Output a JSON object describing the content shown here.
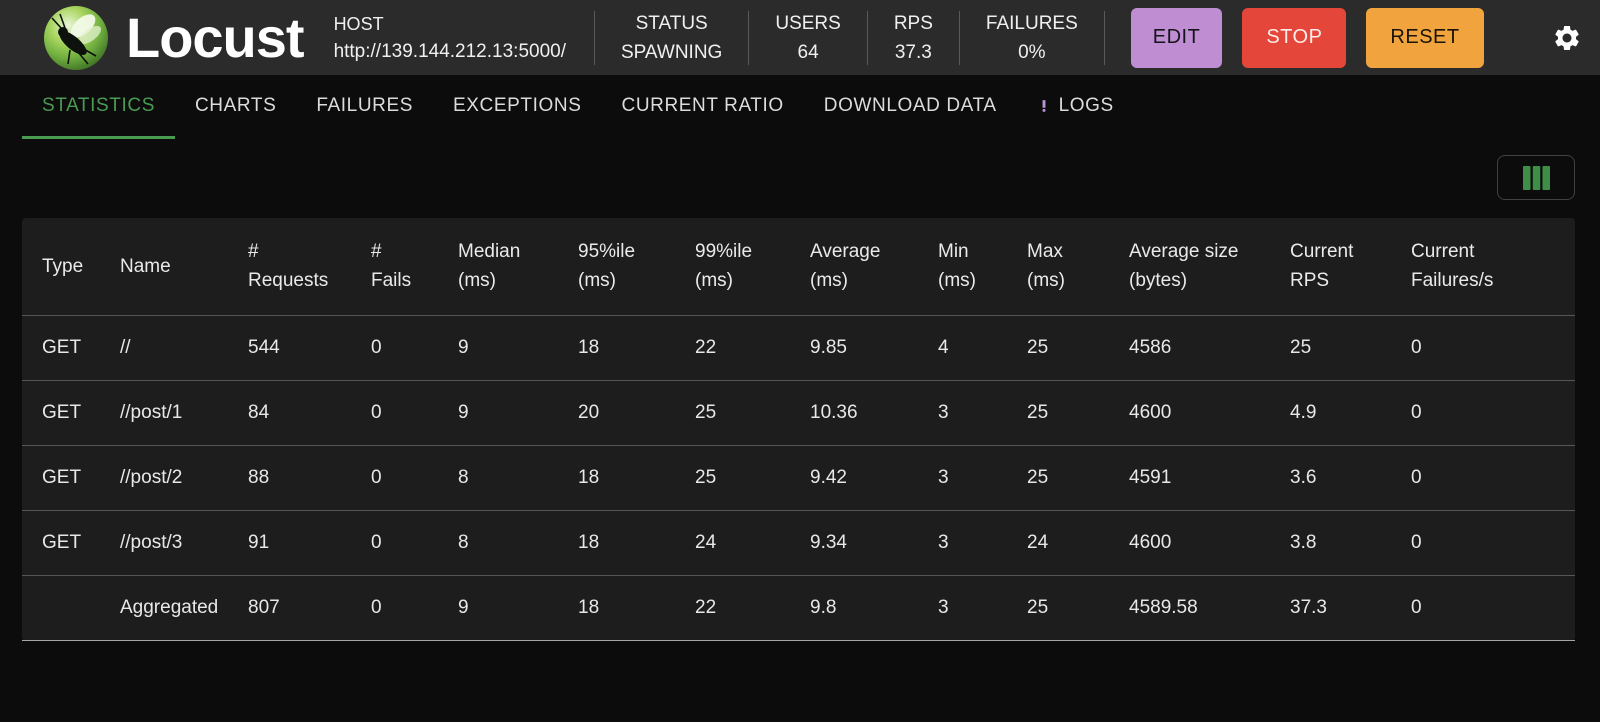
{
  "header": {
    "app_name": "Locust",
    "host": {
      "label": "HOST",
      "url": "http://139.144.212.13:5000/"
    },
    "stats": [
      {
        "label": "STATUS",
        "value": "SPAWNING"
      },
      {
        "label": "USERS",
        "value": "64"
      },
      {
        "label": "RPS",
        "value": "37.3"
      },
      {
        "label": "FAILURES",
        "value": "0%"
      }
    ],
    "buttons": {
      "edit": "EDIT",
      "stop": "STOP",
      "reset": "RESET"
    },
    "icons": {
      "topbar_right": "gear-icon",
      "logo": "locust-logo"
    }
  },
  "tabs": [
    {
      "label": "STATISTICS",
      "active": true
    },
    {
      "label": "CHARTS"
    },
    {
      "label": "FAILURES"
    },
    {
      "label": "EXCEPTIONS"
    },
    {
      "label": "CURRENT RATIO"
    },
    {
      "label": "DOWNLOAD DATA"
    },
    {
      "label": "LOGS",
      "alert_icon": "exclamation-icon"
    }
  ],
  "toolbar": {
    "icon": "view-columns-icon"
  },
  "table": {
    "columns": [
      {
        "key": "type",
        "lines": [
          "Type"
        ]
      },
      {
        "key": "name",
        "lines": [
          "Name"
        ]
      },
      {
        "key": "requests",
        "lines": [
          "#",
          "Requests"
        ]
      },
      {
        "key": "fails",
        "lines": [
          "#",
          "Fails"
        ]
      },
      {
        "key": "median-ms",
        "lines": [
          "Median",
          "(ms)"
        ]
      },
      {
        "key": "p95-ms",
        "lines": [
          "95%ile",
          "(ms)"
        ]
      },
      {
        "key": "p99-ms",
        "lines": [
          "99%ile",
          "(ms)"
        ]
      },
      {
        "key": "average-ms",
        "lines": [
          "Average",
          "(ms)"
        ]
      },
      {
        "key": "min-ms",
        "lines": [
          "Min",
          "(ms)"
        ]
      },
      {
        "key": "max-ms",
        "lines": [
          "Max",
          "(ms)"
        ]
      },
      {
        "key": "average-size-bytes",
        "lines": [
          "Average size",
          "(bytes)"
        ]
      },
      {
        "key": "current-rps",
        "lines": [
          "Current",
          "RPS"
        ]
      },
      {
        "key": "current-failures",
        "lines": [
          "Current",
          "Failures/s"
        ]
      }
    ],
    "rows": [
      {
        "cells": [
          "GET",
          "//",
          "544",
          "0",
          "9",
          "18",
          "22",
          "9.85",
          "4",
          "25",
          "4586",
          "25",
          "0"
        ]
      },
      {
        "cells": [
          "GET",
          "//post/1",
          "84",
          "0",
          "9",
          "20",
          "25",
          "10.36",
          "3",
          "25",
          "4600",
          "4.9",
          "0"
        ]
      },
      {
        "cells": [
          "GET",
          "//post/2",
          "88",
          "0",
          "8",
          "18",
          "25",
          "9.42",
          "3",
          "25",
          "4591",
          "3.6",
          "0"
        ]
      },
      {
        "cells": [
          "GET",
          "//post/3",
          "91",
          "0",
          "8",
          "18",
          "24",
          "9.34",
          "3",
          "24",
          "4600",
          "3.8",
          "0"
        ]
      },
      {
        "cells": [
          "",
          "Aggregated",
          "807",
          "0",
          "9",
          "18",
          "22",
          "9.8",
          "3",
          "25",
          "4589.58",
          "37.3",
          "0"
        ],
        "aggregated": true
      }
    ]
  },
  "colors": {
    "accent_green": "#4a9b52",
    "columns_icon_green": "#3f8e47",
    "edit_button": "#bf8ed2",
    "stop_button": "#e5463a",
    "reset_button": "#f1a43e",
    "logs_alert_purple": "#bd93d8",
    "topbar_bg": "#2b2b2b",
    "page_bg": "#0c0c0c",
    "table_bg": "#1d1d1d"
  }
}
